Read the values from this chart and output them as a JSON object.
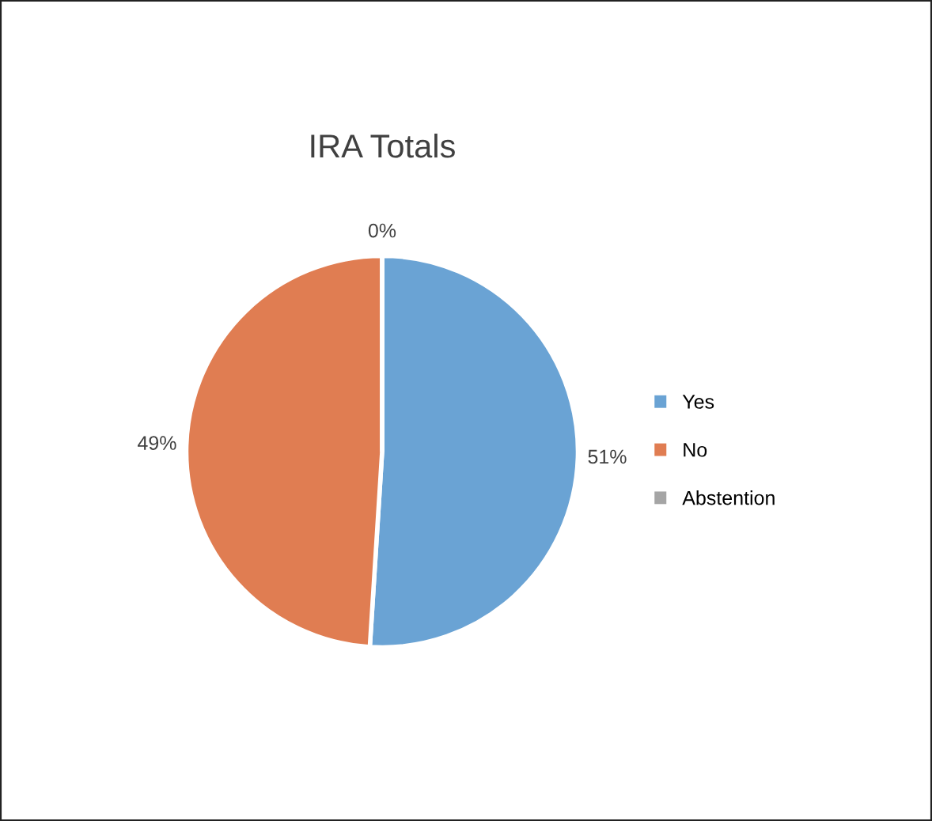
{
  "chart_data": {
    "type": "pie",
    "title": "IRA Totals",
    "categories": [
      "Yes",
      "No",
      "Abstention"
    ],
    "values": [
      51,
      49,
      0
    ],
    "colors": [
      "#6aa3d4",
      "#e07d52",
      "#a5a5a5"
    ],
    "value_labels": [
      "51%",
      "49%",
      "0%"
    ],
    "legend": "right"
  }
}
